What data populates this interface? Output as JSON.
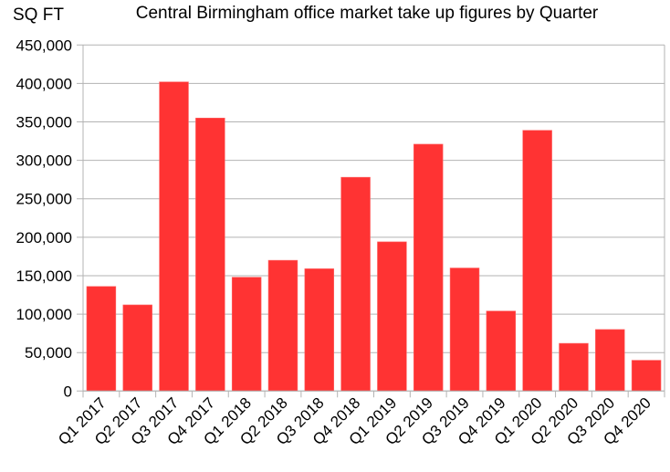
{
  "chart_data": {
    "type": "bar",
    "title": "Central Birmingham office market take up figures by Quarter",
    "xlabel": "",
    "ylabel": "SQ FT",
    "ylim": [
      0,
      450000
    ],
    "yticks": [
      0,
      50000,
      100000,
      150000,
      200000,
      250000,
      300000,
      350000,
      400000,
      450000
    ],
    "ytick_labels": [
      "0",
      "50,000",
      "100,000",
      "150,000",
      "200,000",
      "250,000",
      "300,000",
      "350,000",
      "400,000",
      "450,000"
    ],
    "grid": true,
    "legend": "none",
    "bar_color": "#ff3333",
    "categories": [
      "Q1 2017",
      "Q2 2017",
      "Q3 2017",
      "Q4 2017",
      "Q1 2018",
      "Q2 2018",
      "Q3 2018",
      "Q4 2018",
      "Q1 2019",
      "Q2 2019",
      "Q3 2019",
      "Q4 2019",
      "Q1 2020",
      "Q2 2020",
      "Q3 2020",
      "Q4 2020"
    ],
    "values": [
      136000,
      112000,
      402000,
      355000,
      148000,
      170000,
      159000,
      278000,
      194000,
      321000,
      160000,
      104000,
      339000,
      62000,
      80000,
      40000
    ]
  }
}
